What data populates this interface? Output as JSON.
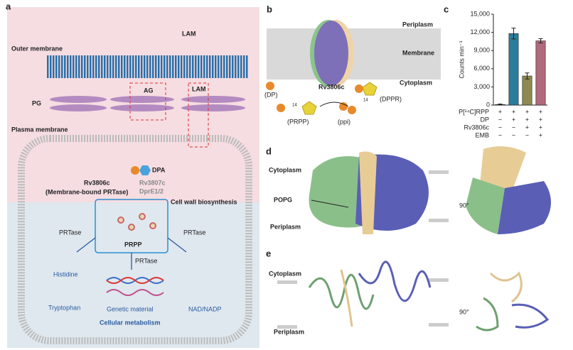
{
  "panel_labels": [
    "a",
    "b",
    "c",
    "d",
    "e"
  ],
  "panel_a": {
    "outer_membrane": "Outer membrane",
    "lam_top": "LAM",
    "lam_box": "LAM",
    "ag": "AG",
    "pg": "PG",
    "plasma_membrane": "Plasma membrane",
    "dpa": "DPA",
    "rv3806c": "Rv3806c",
    "prtase_desc": "(Membrane-bound PRTase)",
    "rv3807c": "Rv3807c",
    "dpre": "DprE1/2",
    "cell_wall": "Cell wall biosynthesis",
    "prpp": "PRPP",
    "prtase_left": "PRTase",
    "prtase_mid": "PRTase",
    "prtase_right": "PRTase",
    "histidine": "Histidine",
    "tryptophan": "Tryptophan",
    "genetic": "Genetic material",
    "nad": "NAD/NADP",
    "metabolism": "Cellular metabolism"
  },
  "panel_b": {
    "periplasm": "Periplasm",
    "membrane": "Membrane",
    "cytoplasm": "Cytoplasm",
    "protein": "Rv3806c",
    "dp": "(DP)",
    "prpp": "(PRPP)",
    "ppi": "(ppi)",
    "dppr": "(DPPR)",
    "iso1": "14",
    "iso2": "14"
  },
  "chart_data": {
    "type": "bar",
    "y_label": "Counts min⁻¹",
    "categories": [
      null,
      null,
      null,
      null
    ],
    "values": [
      100,
      11800,
      4800,
      10600
    ],
    "errors": [
      80,
      900,
      500,
      350
    ],
    "colors": [
      "#555555",
      "#2b7d9c",
      "#8c8a4e",
      "#b06a7c"
    ],
    "ylim": [
      0,
      15000
    ],
    "yticks": [
      0,
      {
        "value": 3000,
        "label": "3,000"
      },
      {
        "value": 6000,
        "label": "6,000"
      },
      {
        "value": 9000,
        "label": "9,000"
      },
      {
        "value": 12000,
        "label": "12,000"
      },
      {
        "value": 15000,
        "label": "15,000"
      }
    ],
    "conditions": [
      {
        "label": "P[¹⁴C]RPP",
        "marks": [
          "+",
          "+",
          "+",
          "+"
        ]
      },
      {
        "label": "DP",
        "marks": [
          "−",
          "+",
          "+",
          "+"
        ]
      },
      {
        "label": "Rv3806c",
        "marks": [
          "−",
          "−",
          "+",
          "+"
        ]
      },
      {
        "label": "EMB",
        "marks": [
          "−",
          "−",
          "−",
          "+"
        ]
      }
    ]
  },
  "panel_d": {
    "cytoplasm": "Cytoplasm",
    "popg": "POPG",
    "periplasm": "Periplasm",
    "rotation": "90°"
  },
  "panel_e": {
    "cytoplasm": "Cytoplasm",
    "periplasm": "Periplasm",
    "rotation": "90°"
  }
}
